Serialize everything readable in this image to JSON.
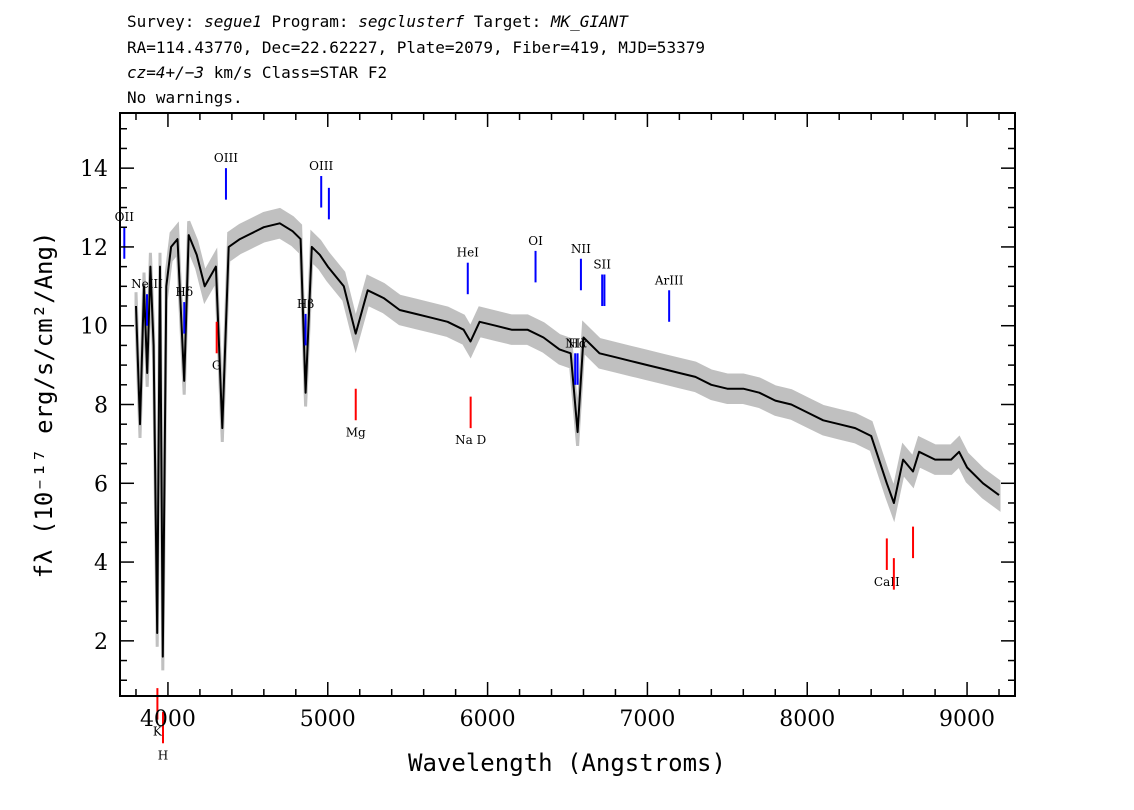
{
  "header": {
    "line1": {
      "survey_label": "Survey: ",
      "survey": "segue1",
      "program_label": " Program: ",
      "program": "segclusterf",
      "target_label": " Target: ",
      "target": "MK_GIANT"
    },
    "line2": "RA=114.43770, Dec=22.62227, Plate=2079, Fiber=419, MJD=53379",
    "line3": {
      "cz": "cz=4+/−3",
      "rest": " km/s Class=STAR F2"
    },
    "line4": "No warnings."
  },
  "colors": {
    "flux": "#000000",
    "error": "#c0c0c0",
    "emission": "#0000ff",
    "absorption": "#ff0000"
  },
  "chart_data": {
    "type": "line",
    "xlabel": "Wavelength (Angstroms)",
    "ylabel": "fλ (10⁻¹⁷ erg/s/cm²/Ang)",
    "xlim": [
      3700,
      9300
    ],
    "ylim": [
      0.6,
      15.4
    ],
    "x_ticks": [
      4000,
      5000,
      6000,
      7000,
      8000,
      9000
    ],
    "y_ticks": [
      2,
      4,
      6,
      8,
      10,
      12,
      14
    ],
    "grid": false,
    "series": [
      {
        "kind": "flux",
        "x": [
          3800,
          3825,
          3850,
          3870,
          3890,
          3910,
          3933,
          3950,
          3968,
          3990,
          4020,
          4060,
          4102,
          4130,
          4180,
          4230,
          4300,
          4340,
          4380,
          4450,
          4500,
          4600,
          4700,
          4780,
          4830,
          4861,
          4900,
          4950,
          5000,
          5100,
          5175,
          5250,
          5350,
          5450,
          5550,
          5650,
          5750,
          5850,
          5893,
          5950,
          6050,
          6150,
          6250,
          6350,
          6450,
          6520,
          6563,
          6600,
          6700,
          6800,
          6900,
          7000,
          7100,
          7200,
          7300,
          7400,
          7500,
          7600,
          7700,
          7800,
          7900,
          8000,
          8100,
          8200,
          8300,
          8400,
          8498,
          8542,
          8600,
          8662,
          8700,
          8800,
          8900,
          8950,
          9000,
          9100,
          9200
        ],
        "y": [
          10.5,
          7.5,
          11.0,
          8.8,
          11.5,
          9.5,
          2.2,
          11.5,
          1.6,
          11.0,
          12.0,
          12.2,
          8.6,
          12.3,
          11.8,
          11.0,
          11.5,
          7.4,
          12.0,
          12.2,
          12.3,
          12.5,
          12.6,
          12.4,
          12.2,
          8.3,
          12.0,
          11.8,
          11.5,
          11.0,
          9.8,
          10.9,
          10.7,
          10.4,
          10.3,
          10.2,
          10.1,
          9.9,
          9.6,
          10.1,
          10.0,
          9.9,
          9.9,
          9.7,
          9.4,
          9.3,
          7.3,
          9.7,
          9.3,
          9.2,
          9.1,
          9.0,
          8.9,
          8.8,
          8.7,
          8.5,
          8.4,
          8.4,
          8.3,
          8.1,
          8.0,
          7.8,
          7.6,
          7.5,
          7.4,
          7.2,
          6.0,
          5.5,
          6.6,
          6.3,
          6.8,
          6.6,
          6.6,
          6.8,
          6.4,
          6.0,
          5.7
        ]
      },
      {
        "kind": "error_band_width",
        "value": 0.35
      }
    ],
    "emission_lines": [
      {
        "name": "OII",
        "wavelength": 3727
      },
      {
        "name": "NeIII",
        "wavelength": 3869
      },
      {
        "name": "Hδ",
        "wavelength": 4102
      },
      {
        "name": "OIII",
        "wavelength": 4363
      },
      {
        "name": "Hβ",
        "wavelength": 4861
      },
      {
        "name": "OIII",
        "wavelength": 4959
      },
      {
        "name": "",
        "wavelength": 5007
      },
      {
        "name": "HeI",
        "wavelength": 5876
      },
      {
        "name": "OI",
        "wavelength": 6300
      },
      {
        "name": "NII",
        "wavelength": 6548
      },
      {
        "name": "Hα",
        "wavelength": 6563
      },
      {
        "name": "NII",
        "wavelength": 6584
      },
      {
        "name": "SII",
        "wavelength": 6717
      },
      {
        "name": "",
        "wavelength": 6731
      },
      {
        "name": "ArIII",
        "wavelength": 7136
      }
    ],
    "absorption_lines": [
      {
        "name": "K",
        "wavelength": 3934
      },
      {
        "name": "H",
        "wavelength": 3969
      },
      {
        "name": "G",
        "wavelength": 4305
      },
      {
        "name": "Mg",
        "wavelength": 5175
      },
      {
        "name": "Na D",
        "wavelength": 5894
      },
      {
        "name": "CaII",
        "wavelength": 8498
      },
      {
        "name": "",
        "wavelength": 8542
      },
      {
        "name": "",
        "wavelength": 8662
      }
    ]
  }
}
